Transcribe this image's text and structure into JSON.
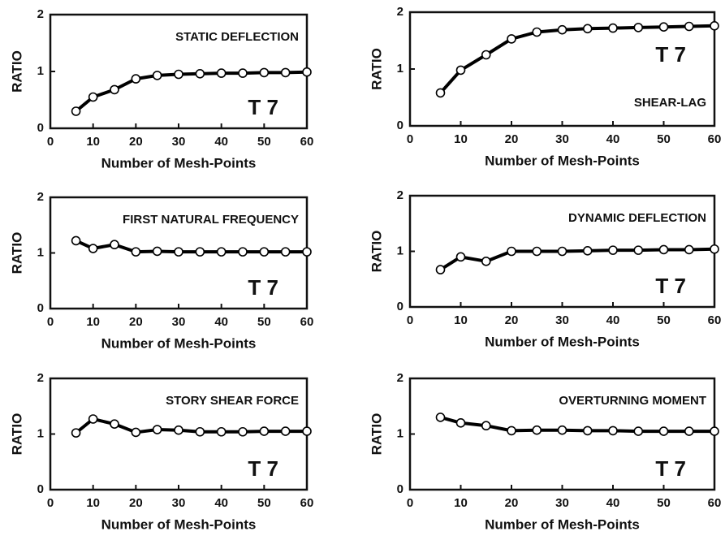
{
  "chart_data": [
    {
      "type": "line",
      "title": "STATIC DEFLECTION",
      "annotation": "T 7",
      "xlabel": "Number of Mesh-Points",
      "ylabel": "RATIO",
      "x": [
        6,
        10,
        15,
        20,
        25,
        30,
        35,
        40,
        45,
        50,
        55,
        60
      ],
      "values": [
        0.3,
        0.55,
        0.68,
        0.87,
        0.93,
        0.95,
        0.96,
        0.97,
        0.97,
        0.98,
        0.98,
        0.99
      ],
      "xlim": [
        0,
        60
      ],
      "xticks": [
        0,
        10,
        20,
        30,
        40,
        50,
        60
      ],
      "ylim": [
        0,
        2
      ],
      "yticks": [
        0,
        1,
        2
      ],
      "color": "#000000"
    },
    {
      "type": "line",
      "title": "SHEAR-LAG",
      "annotation": "T 7",
      "xlabel": "Number of Mesh-Points",
      "ylabel": "RATIO",
      "x": [
        6,
        10,
        15,
        20,
        25,
        30,
        35,
        40,
        45,
        50,
        55,
        60
      ],
      "values": [
        0.58,
        0.98,
        1.25,
        1.53,
        1.65,
        1.69,
        1.71,
        1.72,
        1.73,
        1.74,
        1.75,
        1.76
      ],
      "xlim": [
        0,
        60
      ],
      "xticks": [
        0,
        10,
        20,
        30,
        40,
        50,
        60
      ],
      "ylim": [
        0,
        2
      ],
      "yticks": [
        0,
        1,
        2
      ],
      "color": "#000000"
    },
    {
      "type": "line",
      "title": "FIRST NATURAL FREQUENCY",
      "annotation": "T 7",
      "xlabel": "Number of Mesh-Points",
      "ylabel": "RATIO",
      "x": [
        6,
        10,
        15,
        20,
        25,
        30,
        35,
        40,
        45,
        50,
        55,
        60
      ],
      "values": [
        1.22,
        1.08,
        1.15,
        1.02,
        1.03,
        1.02,
        1.02,
        1.02,
        1.02,
        1.02,
        1.02,
        1.02
      ],
      "xlim": [
        0,
        60
      ],
      "xticks": [
        0,
        10,
        20,
        30,
        40,
        50,
        60
      ],
      "ylim": [
        0,
        2
      ],
      "yticks": [
        0,
        1,
        2
      ],
      "color": "#000000"
    },
    {
      "type": "line",
      "title": "DYNAMIC DEFLECTION",
      "annotation": "T 7",
      "xlabel": "Number of Mesh-Points",
      "ylabel": "RATIO",
      "x": [
        6,
        10,
        15,
        20,
        25,
        30,
        35,
        40,
        45,
        50,
        55,
        60
      ],
      "values": [
        0.67,
        0.9,
        0.82,
        1.0,
        1.0,
        1.0,
        1.01,
        1.02,
        1.02,
        1.03,
        1.03,
        1.04
      ],
      "xlim": [
        0,
        60
      ],
      "xticks": [
        0,
        10,
        20,
        30,
        40,
        50,
        60
      ],
      "ylim": [
        0,
        2
      ],
      "yticks": [
        0,
        1,
        2
      ],
      "color": "#000000"
    },
    {
      "type": "line",
      "title": "STORY SHEAR FORCE",
      "annotation": "T 7",
      "xlabel": "Number of Mesh-Points",
      "ylabel": "RATIO",
      "x": [
        6,
        10,
        15,
        20,
        25,
        30,
        35,
        40,
        45,
        50,
        55,
        60
      ],
      "values": [
        1.02,
        1.27,
        1.18,
        1.03,
        1.08,
        1.07,
        1.04,
        1.04,
        1.04,
        1.05,
        1.05,
        1.05
      ],
      "xlim": [
        0,
        60
      ],
      "xticks": [
        0,
        10,
        20,
        30,
        40,
        50,
        60
      ],
      "ylim": [
        0,
        2
      ],
      "yticks": [
        0,
        1,
        2
      ],
      "color": "#000000"
    },
    {
      "type": "line",
      "title": "OVERTURNING MOMENT",
      "annotation": "T 7",
      "xlabel": "Number of Mesh-Points",
      "ylabel": "RATIO",
      "x": [
        6,
        10,
        15,
        20,
        25,
        30,
        35,
        40,
        45,
        50,
        55,
        60
      ],
      "values": [
        1.3,
        1.2,
        1.15,
        1.06,
        1.07,
        1.07,
        1.06,
        1.06,
        1.05,
        1.05,
        1.05,
        1.05
      ],
      "xlim": [
        0,
        60
      ],
      "xticks": [
        0,
        10,
        20,
        30,
        40,
        50,
        60
      ],
      "ylim": [
        0,
        2
      ],
      "yticks": [
        0,
        1,
        2
      ],
      "color": "#000000"
    }
  ]
}
